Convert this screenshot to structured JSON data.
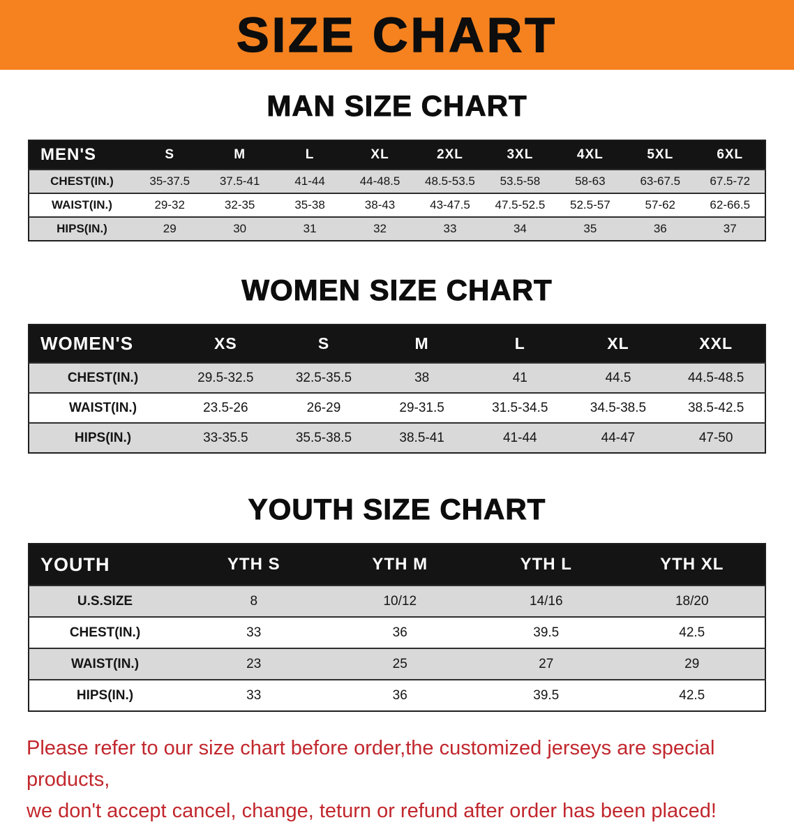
{
  "banner": {
    "title": "SIZE CHART"
  },
  "sections": [
    {
      "heading": "MAN SIZE CHART",
      "table": {
        "header": [
          "MEN'S",
          "S",
          "M",
          "L",
          "XL",
          "2XL",
          "3XL",
          "4XL",
          "5XL",
          "6XL"
        ],
        "rows": [
          {
            "label": "CHEST(IN.)",
            "values": [
              "35-37.5",
              "37.5-41",
              "41-44",
              "44-48.5",
              "48.5-53.5",
              "53.5-58",
              "58-63",
              "63-67.5",
              "67.5-72"
            ]
          },
          {
            "label": "WAIST(IN.)",
            "values": [
              "29-32",
              "32-35",
              "35-38",
              "38-43",
              "43-47.5",
              "47.5-52.5",
              "52.5-57",
              "57-62",
              "62-66.5"
            ]
          },
          {
            "label": "HIPS(IN.)",
            "values": [
              "29",
              "30",
              "31",
              "32",
              "33",
              "34",
              "35",
              "36",
              "37"
            ]
          }
        ]
      }
    },
    {
      "heading": "WOMEN SIZE CHART",
      "table": {
        "header": [
          "WOMEN'S",
          "XS",
          "S",
          "M",
          "L",
          "XL",
          "XXL"
        ],
        "rows": [
          {
            "label": "CHEST(IN.)",
            "values": [
              "29.5-32.5",
              "32.5-35.5",
              "38",
              "41",
              "44.5",
              "44.5-48.5"
            ]
          },
          {
            "label": "WAIST(IN.)",
            "values": [
              "23.5-26",
              "26-29",
              "29-31.5",
              "31.5-34.5",
              "34.5-38.5",
              "38.5-42.5"
            ]
          },
          {
            "label": "HIPS(IN.)",
            "values": [
              "33-35.5",
              "35.5-38.5",
              "38.5-41",
              "41-44",
              "44-47",
              "47-50"
            ]
          }
        ]
      }
    },
    {
      "heading": "YOUTH SIZE CHART",
      "table": {
        "header": [
          "YOUTH",
          "YTH S",
          "YTH M",
          "YTH L",
          "YTH XL"
        ],
        "rows": [
          {
            "label": "U.S.SIZE",
            "values": [
              "8",
              "10/12",
              "14/16",
              "18/20"
            ]
          },
          {
            "label": "CHEST(IN.)",
            "values": [
              "33",
              "36",
              "39.5",
              "42.5"
            ]
          },
          {
            "label": "WAIST(IN.)",
            "values": [
              "23",
              "25",
              "27",
              "29"
            ]
          },
          {
            "label": "HIPS(IN.)",
            "values": [
              "33",
              "36",
              "39.5",
              "42.5"
            ]
          }
        ]
      }
    }
  ],
  "footer": {
    "lines": [
      "Please refer to our size chart before order,the customized jerseys are special products,",
      "we don't accept cancel, change, teturn or refund after order has been placed!"
    ]
  },
  "colors": {
    "banner_orange": "#f5821f",
    "table_header_black": "#141414",
    "stripe_gray": "#d9d9d9",
    "notice_red": "#c1272d"
  }
}
